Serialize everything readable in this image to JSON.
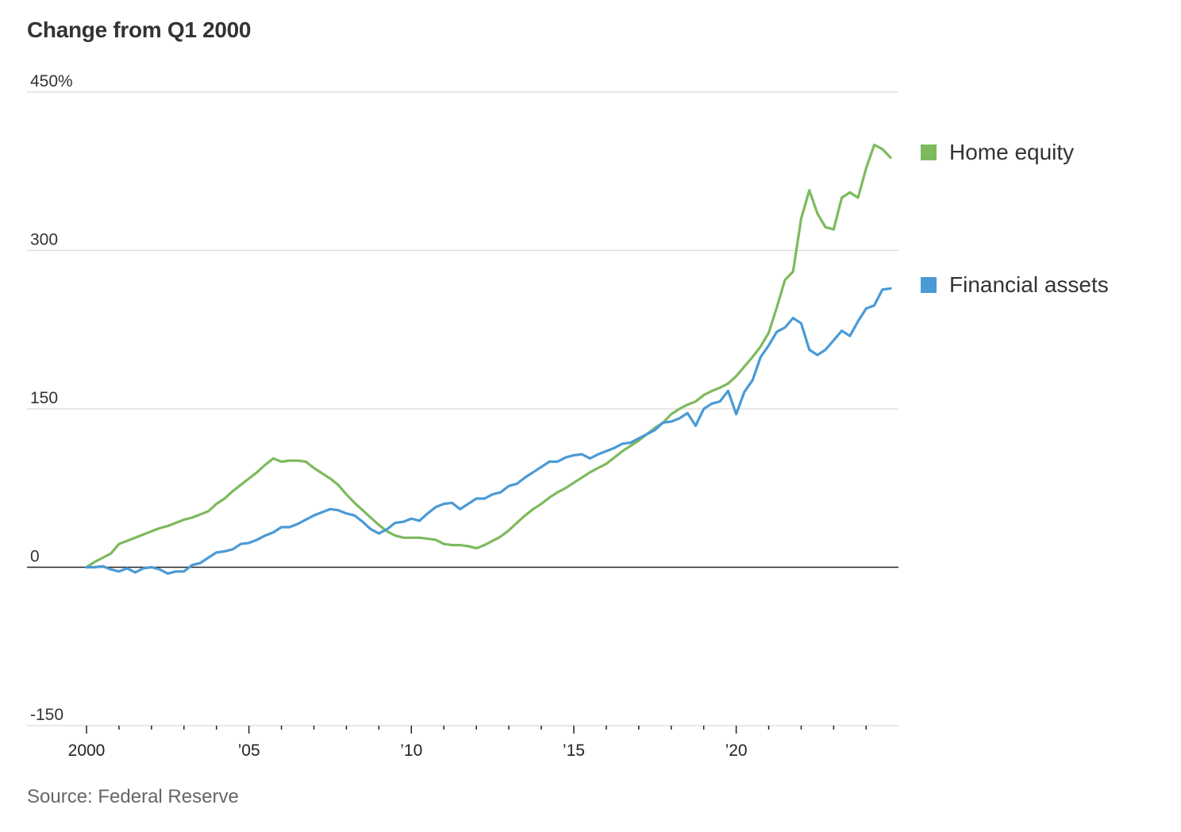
{
  "title": "Change from Q1 2000",
  "source": "Source: Federal Reserve",
  "colors": {
    "home_equity": "#7dba5d",
    "financial_assets": "#4a9ad6",
    "grid": "#d9d9d9",
    "zero": "#222222"
  },
  "chart_data": {
    "type": "line",
    "title": "Change from Q1 2000",
    "xlabel": "",
    "ylabel": "",
    "xlim": [
      2000,
      2024.75
    ],
    "ylim": [
      -150,
      450
    ],
    "yticks": [
      450,
      300,
      150,
      0,
      -150
    ],
    "ytick_labels": [
      "450%",
      "300",
      "150",
      "0",
      "-150"
    ],
    "xticks": [
      2000,
      2005,
      2010,
      2015,
      2020
    ],
    "xtick_labels": [
      "2000",
      "’05",
      "’10",
      "’15",
      "’20"
    ],
    "grid": true,
    "legend": "right",
    "series": [
      {
        "name": "Home equity",
        "color": "#7dba5d",
        "x": [
          2000,
          2000.25,
          2000.5,
          2000.75,
          2001,
          2001.25,
          2001.5,
          2001.75,
          2002,
          2002.25,
          2002.5,
          2002.75,
          2003,
          2003.25,
          2003.5,
          2003.75,
          2004,
          2004.25,
          2004.5,
          2004.75,
          2005,
          2005.25,
          2005.5,
          2005.75,
          2006,
          2006.25,
          2006.5,
          2006.75,
          2007,
          2007.25,
          2007.5,
          2007.75,
          2008,
          2008.25,
          2008.5,
          2008.75,
          2009,
          2009.25,
          2009.5,
          2009.75,
          2010,
          2010.25,
          2010.5,
          2010.75,
          2011,
          2011.25,
          2011.5,
          2011.75,
          2012,
          2012.25,
          2012.5,
          2012.75,
          2013,
          2013.25,
          2013.5,
          2013.75,
          2014,
          2014.25,
          2014.5,
          2014.75,
          2015,
          2015.25,
          2015.5,
          2015.75,
          2016,
          2016.25,
          2016.5,
          2016.75,
          2017,
          2017.25,
          2017.5,
          2017.75,
          2018,
          2018.25,
          2018.5,
          2018.75,
          2019,
          2019.25,
          2019.5,
          2019.75,
          2020,
          2020.25,
          2020.5,
          2020.75,
          2021,
          2021.25,
          2021.5,
          2021.75,
          2022,
          2022.25,
          2022.5,
          2022.75,
          2023,
          2023.25,
          2023.5,
          2023.75,
          2024,
          2024.25,
          2024.5,
          2024.75
        ],
        "values": [
          0,
          5,
          9,
          13,
          22,
          25,
          28,
          31,
          34,
          37,
          39,
          42,
          45,
          47,
          50,
          53,
          60,
          65,
          72,
          78,
          84,
          90,
          97,
          103,
          100,
          101,
          101,
          100,
          94,
          89,
          84,
          78,
          69,
          61,
          54,
          47,
          40,
          34,
          30,
          28,
          28,
          28,
          27,
          26,
          22,
          21,
          21,
          20,
          18,
          21,
          25,
          29,
          35,
          42,
          49,
          55,
          60,
          66,
          71,
          75,
          80,
          85,
          90,
          94,
          98,
          104,
          110,
          115,
          120,
          126,
          132,
          137,
          145,
          150,
          154,
          157,
          163,
          167,
          170,
          174,
          181,
          190,
          199,
          209,
          222,
          246,
          272,
          280,
          330,
          357,
          335,
          322,
          320,
          350,
          355,
          350,
          378,
          400,
          396,
          388
        ]
      },
      {
        "name": "Financial assets",
        "color": "#4a9ad6",
        "x": [
          2000,
          2000.25,
          2000.5,
          2000.75,
          2001,
          2001.25,
          2001.5,
          2001.75,
          2002,
          2002.25,
          2002.5,
          2002.75,
          2003,
          2003.25,
          2003.5,
          2003.75,
          2004,
          2004.25,
          2004.5,
          2004.75,
          2005,
          2005.25,
          2005.5,
          2005.75,
          2006,
          2006.25,
          2006.5,
          2006.75,
          2007,
          2007.25,
          2007.5,
          2007.75,
          2008,
          2008.25,
          2008.5,
          2008.75,
          2009,
          2009.25,
          2009.5,
          2009.75,
          2010,
          2010.25,
          2010.5,
          2010.75,
          2011,
          2011.25,
          2011.5,
          2011.75,
          2012,
          2012.25,
          2012.5,
          2012.75,
          2013,
          2013.25,
          2013.5,
          2013.75,
          2014,
          2014.25,
          2014.5,
          2014.75,
          2015,
          2015.25,
          2015.5,
          2015.75,
          2016,
          2016.25,
          2016.5,
          2016.75,
          2017,
          2017.25,
          2017.5,
          2017.75,
          2018,
          2018.25,
          2018.5,
          2018.75,
          2019,
          2019.25,
          2019.5,
          2019.75,
          2020,
          2020.25,
          2020.5,
          2020.75,
          2021,
          2021.25,
          2021.5,
          2021.75,
          2022,
          2022.25,
          2022.5,
          2022.75,
          2023,
          2023.25,
          2023.5,
          2023.75,
          2024,
          2024.25,
          2024.5,
          2024.75
        ],
        "values": [
          0,
          0,
          1,
          -2,
          -4,
          -1,
          -5,
          -1,
          0,
          -2,
          -6,
          -4,
          -4,
          2,
          4,
          9,
          14,
          15,
          17,
          22,
          23,
          26,
          30,
          33,
          38,
          38,
          41,
          45,
          49,
          52,
          55,
          54,
          51,
          49,
          43,
          36,
          32,
          36,
          42,
          43,
          46,
          44,
          51,
          57,
          60,
          61,
          55,
          60,
          65,
          65,
          69,
          71,
          77,
          79,
          85,
          90,
          95,
          100,
          100,
          104,
          106,
          107,
          103,
          107,
          110,
          113,
          117,
          118,
          122,
          126,
          130,
          137,
          138,
          141,
          146,
          134,
          150,
          155,
          157,
          167,
          145,
          166,
          177,
          199,
          210,
          223,
          227,
          236,
          231,
          206,
          201,
          206,
          215,
          224,
          219,
          233,
          245,
          248,
          263,
          264
        ]
      }
    ]
  },
  "legend": [
    {
      "label": "Home equity",
      "color": "#7dba5d"
    },
    {
      "label": "Financial assets",
      "color": "#4a9ad6"
    }
  ]
}
